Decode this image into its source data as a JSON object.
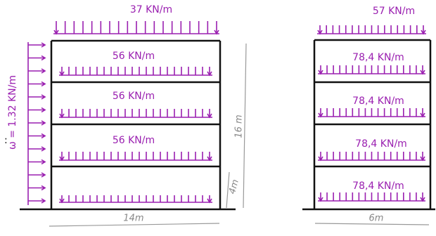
{
  "left_frame": {
    "roof_load": "37 KN/m",
    "floor_loads": [
      "56 KN/m",
      "56 KN/m",
      "56 KN/m"
    ],
    "lateral_load": "ω = 1.32 KN/m",
    "height": "16 m",
    "storey_height": "4m",
    "width": "14m",
    "side_mark": ":"
  },
  "right_frame": {
    "roof_load": "57 KN/m",
    "floor_loads": [
      "78,4 KN/m",
      "78,4 KN/m",
      "78,4 KN/m",
      "78,4 KN/m"
    ],
    "width": "6m"
  }
}
